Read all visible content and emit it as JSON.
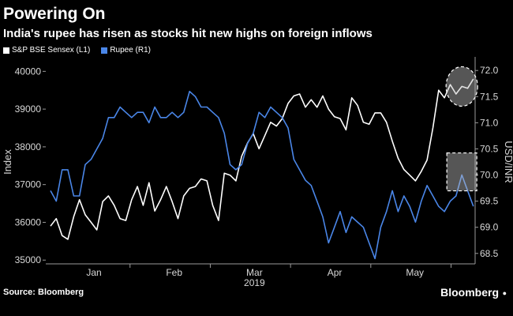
{
  "header": {
    "title": "Powering On",
    "subtitle": "India's rupee has risen as stocks hit new highs on foreign inflows"
  },
  "footer": {
    "source": "Source: Bloomberg",
    "brand": "Bloomberg"
  },
  "chart_data": {
    "type": "line",
    "legend_placement": "top-left",
    "grid": false,
    "xlabel": "2019",
    "xticks": [
      "Jan",
      "Feb",
      "Mar",
      "Apr",
      "May"
    ],
    "left_axis": {
      "label": "Index",
      "ylim": [
        34900,
        40300
      ],
      "ticks": [
        35000,
        36000,
        37000,
        38000,
        39000,
        40000
      ]
    },
    "right_axis": {
      "label": "USD/INR",
      "ylim": [
        68.3,
        72.2
      ],
      "ticks": [
        68.5,
        69.0,
        69.5,
        70.0,
        70.5,
        71.0,
        71.5,
        72.0
      ]
    },
    "series": [
      {
        "name": "S&P BSE Sensex (L1)",
        "axis": "left",
        "color": "#ffffff",
        "values": [
          35900,
          36100,
          35650,
          35550,
          36150,
          36600,
          36200,
          36000,
          35800,
          36550,
          36700,
          36450,
          36100,
          36050,
          36600,
          36950,
          36450,
          37050,
          36300,
          36600,
          36950,
          36550,
          36100,
          36700,
          36900,
          36950,
          37150,
          37100,
          36450,
          36050,
          37300,
          37250,
          37100,
          37750,
          38100,
          38350,
          37950,
          38300,
          38650,
          38550,
          38750,
          39150,
          39350,
          39400,
          39050,
          39250,
          39050,
          39350,
          39000,
          38800,
          38750,
          38450,
          39300,
          39100,
          38650,
          38600,
          38900,
          38900,
          38650,
          38150,
          37700,
          37400,
          37250,
          37100,
          37350,
          37650,
          38500,
          39500,
          39300,
          39650,
          39400,
          39600,
          39550,
          39800
        ]
      },
      {
        "name": "Rupee (R1)",
        "axis": "right",
        "color": "#4a86e8",
        "values": [
          69.7,
          69.5,
          70.1,
          70.1,
          69.6,
          69.6,
          70.2,
          70.3,
          70.5,
          70.7,
          71.1,
          71.1,
          71.3,
          71.2,
          71.1,
          71.2,
          71.2,
          71.0,
          71.3,
          71.1,
          71.1,
          71.2,
          71.1,
          71.2,
          71.6,
          71.5,
          71.3,
          71.3,
          71.2,
          71.1,
          70.8,
          70.2,
          70.1,
          70.2,
          70.6,
          70.8,
          71.2,
          71.1,
          71.3,
          71.2,
          71.1,
          70.9,
          70.3,
          70.1,
          69.9,
          69.8,
          69.5,
          69.2,
          68.7,
          69.0,
          69.3,
          68.9,
          69.2,
          69.1,
          69.0,
          68.7,
          68.4,
          69.0,
          69.3,
          69.7,
          69.3,
          69.6,
          69.4,
          69.1,
          69.5,
          69.8,
          69.6,
          69.4,
          69.3,
          69.5,
          69.6,
          70.0,
          69.7,
          69.4
        ]
      }
    ]
  }
}
